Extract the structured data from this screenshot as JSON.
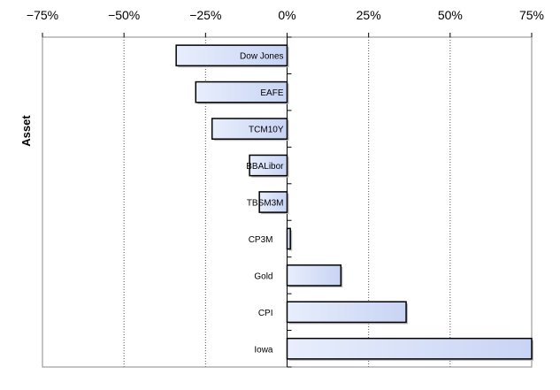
{
  "chart_data": {
    "type": "bar",
    "orientation": "horizontal",
    "ylabel": "Asset",
    "xlim": [
      -0.75,
      0.75
    ],
    "x_ticks": [
      -0.75,
      -0.5,
      -0.25,
      0,
      0.25,
      0.5,
      0.75
    ],
    "x_tick_labels": [
      "−75%",
      "−50%",
      "−25%",
      "0%",
      "25%",
      "50%",
      "75%"
    ],
    "x_axis_position": "top",
    "grid": "vertical-dotted",
    "categories": [
      "Dow Jones",
      "EAFE",
      "TCM10Y",
      "BBALibor",
      "TBSM3M",
      "CP3M",
      "Gold",
      "CPI",
      "Iowa"
    ],
    "values": [
      -0.34,
      -0.28,
      -0.23,
      -0.115,
      -0.085,
      0.01,
      0.165,
      0.365,
      0.75
    ],
    "bar_color": "#c8d4f4",
    "bar_gradient_end": "#e8eefc",
    "bar_border": "#000000"
  }
}
